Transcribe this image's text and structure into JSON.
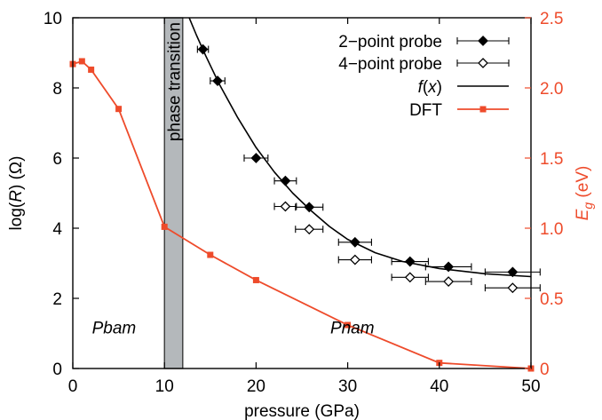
{
  "chart_data": {
    "type": "scatter",
    "xlabel": "pressure (GPa)",
    "ylabel_left": "log(R) (Ω)",
    "ylabel_right": "E_g (eV)",
    "xlim": [
      0,
      50
    ],
    "ylim_left": [
      0,
      10
    ],
    "ylim_right": [
      0,
      2.5
    ],
    "x_ticks": [
      0,
      10,
      20,
      30,
      40,
      50
    ],
    "y_left_ticks": [
      0,
      2,
      4,
      6,
      8,
      10
    ],
    "y_right_ticks": [
      0,
      0.5,
      1.0,
      1.5,
      2.0,
      2.5
    ],
    "y_right_tick_labels": [
      "0",
      "0.5",
      "1.0",
      "1.5",
      "2.0",
      "2.5"
    ],
    "grid": false,
    "legend_position": "top-right",
    "colors": {
      "black": "#000000",
      "dft": "#ee4b2b",
      "band": "#b4b8bb",
      "band_edge": "#222222"
    },
    "phase_band": {
      "x_start": 10,
      "x_end": 12,
      "label": "phase transition"
    },
    "region_labels": [
      {
        "text": "Pbam",
        "x": 4.5,
        "y": 0.8
      },
      {
        "text": "Pnam",
        "x": 30.5,
        "y": 0.8
      }
    ],
    "series": [
      {
        "name": "2−point probe",
        "axis": "left",
        "marker": "diamond-filled",
        "x": [
          14.2,
          15.8,
          20.0,
          23.2,
          25.8,
          30.8,
          36.8,
          41.0,
          48.0
        ],
        "y": [
          9.1,
          8.2,
          6.0,
          5.35,
          4.6,
          3.6,
          3.05,
          2.9,
          2.75
        ],
        "xerr": [
          0.6,
          0.8,
          1.3,
          1.2,
          1.5,
          1.8,
          2.0,
          2.5,
          3.0
        ]
      },
      {
        "name": "4−point probe",
        "axis": "left",
        "marker": "diamond-open",
        "x": [
          23.2,
          25.8,
          30.8,
          36.8,
          41.0,
          48.0
        ],
        "y": [
          4.62,
          3.97,
          3.1,
          2.6,
          2.48,
          2.3
        ],
        "xerr": [
          1.2,
          1.5,
          1.8,
          2.0,
          2.5,
          3.0
        ]
      },
      {
        "name": "f(x)",
        "axis": "left",
        "style": "line",
        "x": [
          12.7,
          13.5,
          14.5,
          16,
          18,
          20,
          22,
          24,
          26,
          28,
          30,
          33,
          36,
          40,
          45,
          50
        ],
        "y": [
          10.0,
          9.5,
          8.92,
          8.1,
          7.15,
          6.3,
          5.6,
          5.0,
          4.5,
          4.05,
          3.68,
          3.3,
          3.05,
          2.85,
          2.7,
          2.62
        ]
      },
      {
        "name": "DFT",
        "axis": "right",
        "marker": "square",
        "style": "line+marker",
        "x": [
          0,
          1,
          2,
          5,
          10,
          15,
          20,
          30,
          40,
          50
        ],
        "y": [
          2.17,
          2.19,
          2.13,
          1.85,
          1.01,
          0.81,
          0.63,
          0.31,
          0.04,
          0.0
        ]
      }
    ],
    "legend": [
      {
        "label": "2−point probe",
        "series": 0
      },
      {
        "label": "4−point probe",
        "series": 1
      },
      {
        "label": "f(x)",
        "series": 2
      },
      {
        "label": "DFT",
        "series": 3
      }
    ]
  }
}
